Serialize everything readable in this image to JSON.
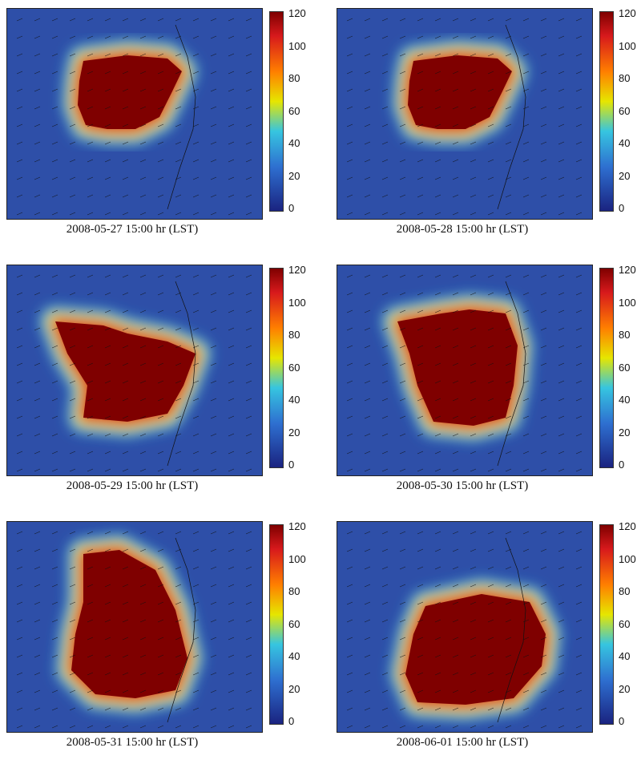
{
  "figure": {
    "panels": [
      {
        "caption": "2008-05-27 15:00 hr (LST)"
      },
      {
        "caption": "2008-05-28 15:00 hr (LST)"
      },
      {
        "caption": "2008-05-29 15:00 hr (LST)"
      },
      {
        "caption": "2008-05-30 15:00 hr (LST)"
      },
      {
        "caption": "2008-05-31 15:00 hr (LST)"
      },
      {
        "caption": "2008-06-01 15:00 hr (LST)"
      }
    ]
  },
  "chart_data": {
    "type": "heatmap",
    "colorbar": {
      "ticks": [
        "120",
        "100",
        "80",
        "60",
        "40",
        "20",
        "0"
      ],
      "range": [
        0,
        120
      ],
      "colormap": "jet"
    },
    "overlay": "wind vectors",
    "colors": {
      "dark_red": "#7f0000",
      "red": "#d7191c",
      "orange": "#f7931e",
      "yellow": "#e6e600",
      "cyan": "#36c5e0",
      "blue": "#2e4fa8",
      "navy": "#1a2380"
    }
  }
}
